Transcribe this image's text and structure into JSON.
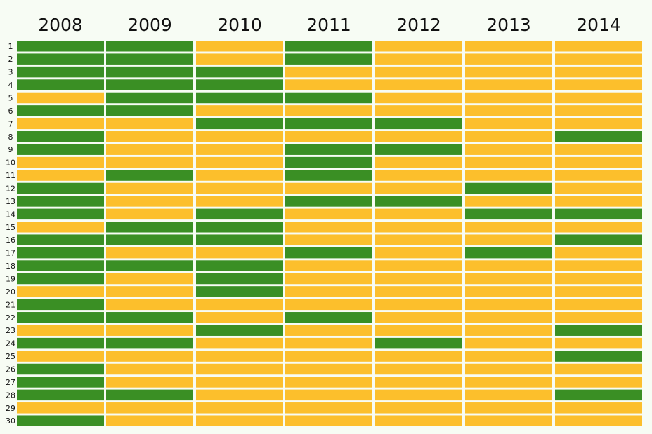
{
  "colors": {
    "background": "#f7fcf4",
    "green": "#3a8f24",
    "yellow": "#fcbf2c"
  },
  "chart_data": {
    "type": "heatmap",
    "title": "",
    "columns": [
      "2008",
      "2009",
      "2010",
      "2011",
      "2012",
      "2013",
      "2014"
    ],
    "rows": [
      "1",
      "2",
      "3",
      "4",
      "5",
      "6",
      "7",
      "8",
      "9",
      "10",
      "11",
      "12",
      "13",
      "14",
      "15",
      "16",
      "17",
      "18",
      "19",
      "20",
      "21",
      "22",
      "23",
      "24",
      "25",
      "26",
      "27",
      "28",
      "29",
      "30"
    ],
    "legend": {
      "G": "green cell",
      "Y": "yellow cell"
    },
    "values": [
      [
        "G",
        "G",
        "Y",
        "G",
        "Y",
        "Y",
        "Y"
      ],
      [
        "G",
        "G",
        "Y",
        "G",
        "Y",
        "Y",
        "Y"
      ],
      [
        "G",
        "G",
        "G",
        "Y",
        "Y",
        "Y",
        "Y"
      ],
      [
        "G",
        "G",
        "G",
        "Y",
        "Y",
        "Y",
        "Y"
      ],
      [
        "Y",
        "G",
        "G",
        "G",
        "Y",
        "Y",
        "Y"
      ],
      [
        "G",
        "G",
        "Y",
        "Y",
        "Y",
        "Y",
        "Y"
      ],
      [
        "Y",
        "Y",
        "G",
        "G",
        "G",
        "Y",
        "Y"
      ],
      [
        "G",
        "Y",
        "Y",
        "Y",
        "Y",
        "Y",
        "G"
      ],
      [
        "G",
        "Y",
        "Y",
        "G",
        "G",
        "Y",
        "Y"
      ],
      [
        "Y",
        "Y",
        "Y",
        "G",
        "Y",
        "Y",
        "Y"
      ],
      [
        "Y",
        "G",
        "Y",
        "G",
        "Y",
        "Y",
        "Y"
      ],
      [
        "G",
        "Y",
        "Y",
        "Y",
        "Y",
        "G",
        "Y"
      ],
      [
        "G",
        "Y",
        "Y",
        "G",
        "G",
        "Y",
        "Y"
      ],
      [
        "G",
        "Y",
        "G",
        "Y",
        "Y",
        "G",
        "G"
      ],
      [
        "Y",
        "G",
        "G",
        "Y",
        "Y",
        "Y",
        "Y"
      ],
      [
        "G",
        "G",
        "G",
        "Y",
        "Y",
        "Y",
        "G"
      ],
      [
        "G",
        "Y",
        "Y",
        "G",
        "Y",
        "G",
        "Y"
      ],
      [
        "G",
        "G",
        "G",
        "Y",
        "Y",
        "Y",
        "Y"
      ],
      [
        "G",
        "Y",
        "G",
        "Y",
        "Y",
        "Y",
        "Y"
      ],
      [
        "Y",
        "Y",
        "G",
        "Y",
        "Y",
        "Y",
        "Y"
      ],
      [
        "G",
        "Y",
        "Y",
        "Y",
        "Y",
        "Y",
        "Y"
      ],
      [
        "G",
        "G",
        "Y",
        "G",
        "Y",
        "Y",
        "Y"
      ],
      [
        "Y",
        "Y",
        "G",
        "Y",
        "Y",
        "Y",
        "G"
      ],
      [
        "G",
        "G",
        "Y",
        "Y",
        "G",
        "Y",
        "Y"
      ],
      [
        "Y",
        "Y",
        "Y",
        "Y",
        "Y",
        "Y",
        "G"
      ],
      [
        "G",
        "Y",
        "Y",
        "Y",
        "Y",
        "Y",
        "Y"
      ],
      [
        "G",
        "Y",
        "Y",
        "Y",
        "Y",
        "Y",
        "Y"
      ],
      [
        "G",
        "G",
        "Y",
        "Y",
        "Y",
        "Y",
        "G"
      ],
      [
        "Y",
        "Y",
        "Y",
        "Y",
        "Y",
        "Y",
        "Y"
      ],
      [
        "G",
        "Y",
        "Y",
        "Y",
        "Y",
        "Y",
        "Y"
      ]
    ]
  }
}
